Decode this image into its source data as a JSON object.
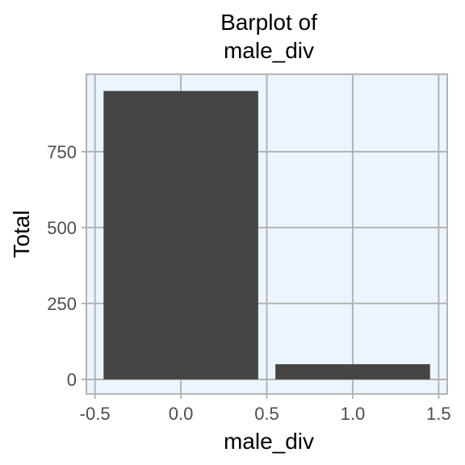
{
  "chart_data": {
    "type": "bar",
    "title_lines": [
      "Barplot of",
      "male_div"
    ],
    "xlabel": "male_div",
    "ylabel": "Total",
    "x_ticks": [
      -0.5,
      0.0,
      0.5,
      1.0,
      1.5
    ],
    "x_tick_labels": [
      "-0.5",
      "0.0",
      "0.5",
      "1.0",
      "1.5"
    ],
    "y_ticks": [
      0,
      250,
      500,
      750
    ],
    "y_tick_labels": [
      "0",
      "250",
      "500",
      "750"
    ],
    "xlim": [
      -0.55,
      1.55
    ],
    "ylim": [
      -48,
      1005
    ],
    "bar_width": 0.9,
    "categories": [
      0,
      1
    ],
    "values": [
      950,
      50
    ],
    "grid": true,
    "colors": {
      "panel_background": "#ebf5ff",
      "grid": "#b3b3b3",
      "bar": "#454545",
      "frame": "#b3b3b3"
    }
  }
}
